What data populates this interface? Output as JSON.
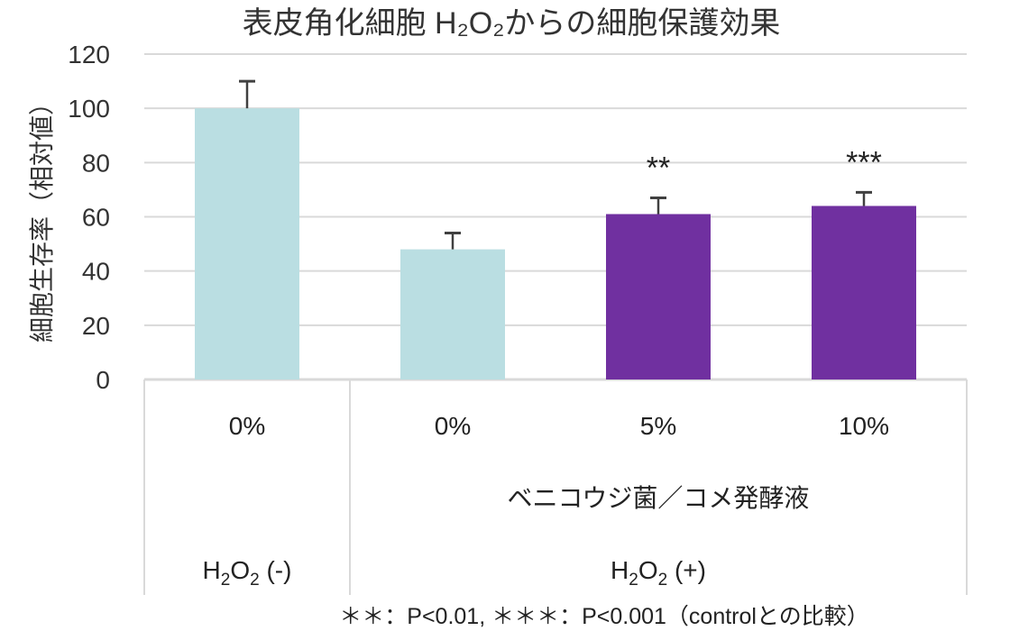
{
  "chart_data": {
    "type": "bar",
    "title": "表皮角化細胞 H₂O₂からの細胞保護効果",
    "ylabel": "細胞生存率（相対値）",
    "ylim": [
      0,
      120
    ],
    "yticks": [
      0,
      20,
      40,
      60,
      80,
      100,
      120
    ],
    "grid": true,
    "categories": [
      "0%",
      "0%",
      "5%",
      "10%"
    ],
    "values": [
      100,
      48,
      61,
      64
    ],
    "errors": [
      10,
      6,
      6,
      5
    ],
    "significance": [
      "",
      "",
      "**",
      "***"
    ],
    "bar_colors": [
      "#BADEE2",
      "#BADEE2",
      "#7030A0",
      "#7030A0"
    ],
    "group_labels": {
      "level2": {
        "label": "ベニコウジ菌／コメ発酵液",
        "span": [
          1,
          3
        ]
      },
      "level3": [
        {
          "main": "H",
          "sub1": "2",
          "mid": "O",
          "sub2": "2",
          "suffix": " (-)",
          "span": [
            0,
            0
          ]
        },
        {
          "main": "H",
          "sub1": "2",
          "mid": "O",
          "sub2": "2",
          "suffix": " (+)",
          "span": [
            1,
            3
          ]
        }
      ]
    },
    "footnote": "＊＊：P<0.01, ＊＊＊：P<0.001（controlとの比較）"
  },
  "colors": {
    "grid": "#D9D9D9",
    "error": "#404040",
    "text": "#222222"
  }
}
